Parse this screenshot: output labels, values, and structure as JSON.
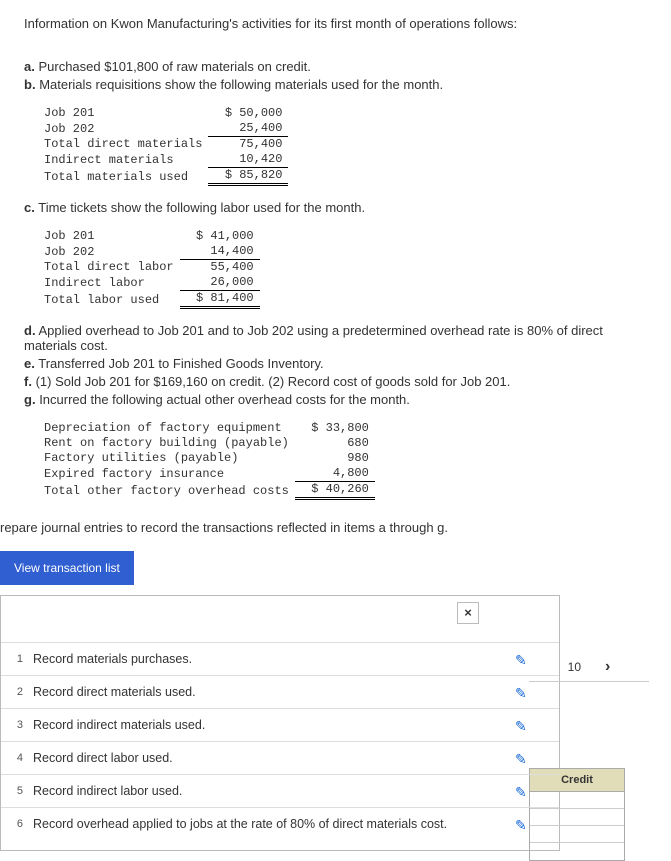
{
  "intro": "Information on Kwon Manufacturing's activities for its first month of operations follows:",
  "items": {
    "a": {
      "letter": "a.",
      "text": "Purchased $101,800 of raw materials on credit."
    },
    "b": {
      "letter": "b.",
      "text": "Materials requisitions show the following materials used for the month."
    },
    "c": {
      "letter": "c.",
      "text": "Time tickets show the following labor used for the month."
    },
    "d": {
      "letter": "d.",
      "text": "Applied overhead to Job 201 and to Job 202 using a predetermined overhead rate is 80% of direct materials cost."
    },
    "e": {
      "letter": "e.",
      "text": "Transferred Job 201 to Finished Goods Inventory."
    },
    "f": {
      "letter": "f.",
      "text": "(1) Sold Job 201 for $169,160 on credit. (2) Record cost of goods sold for Job 201."
    },
    "g": {
      "letter": "g.",
      "text": "Incurred the following actual other overhead costs for the month."
    }
  },
  "table_materials": {
    "rows": [
      {
        "label": "Job 201",
        "amt": "$ 50,000"
      },
      {
        "label": "Job 202",
        "amt": "25,400"
      },
      {
        "label": "Total direct materials",
        "amt": "75,400",
        "subtop": true
      },
      {
        "label": "Indirect materials",
        "amt": "10,420"
      },
      {
        "label": "Total materials used",
        "amt": "$ 85,820",
        "dbl": true
      }
    ]
  },
  "table_labor": {
    "rows": [
      {
        "label": "Job 201",
        "amt": "$ 41,000"
      },
      {
        "label": "Job 202",
        "amt": "14,400"
      },
      {
        "label": "Total direct labor",
        "amt": "55,400",
        "subtop": true
      },
      {
        "label": "Indirect labor",
        "amt": "26,000"
      },
      {
        "label": "Total labor used",
        "amt": "$ 81,400",
        "dbl": true
      }
    ]
  },
  "table_overhead": {
    "rows": [
      {
        "label": "Depreciation of factory equipment",
        "amt": "$ 33,800"
      },
      {
        "label": "Rent on factory building (payable)",
        "amt": "680"
      },
      {
        "label": "Factory utilities (payable)",
        "amt": "980"
      },
      {
        "label": "Expired factory insurance",
        "amt": "4,800"
      },
      {
        "label": "Total other factory overhead costs",
        "amt": "$ 40,260",
        "dbl": true
      }
    ]
  },
  "prompt": "repare journal entries to record the transactions reflected in items a through g.",
  "button_view": "View transaction list",
  "close": "×",
  "side": {
    "page": "10",
    "chev": "›"
  },
  "credit_header": "Credit",
  "transactions": [
    {
      "n": "1",
      "label": "Record materials purchases."
    },
    {
      "n": "2",
      "label": "Record direct materials used."
    },
    {
      "n": "3",
      "label": "Record indirect materials used."
    },
    {
      "n": "4",
      "label": "Record direct labor used."
    },
    {
      "n": "5",
      "label": "Record indirect labor used."
    },
    {
      "n": "6",
      "label": "Record overhead applied to jobs at the rate of 80% of direct materials cost."
    }
  ],
  "pencil": "✎"
}
